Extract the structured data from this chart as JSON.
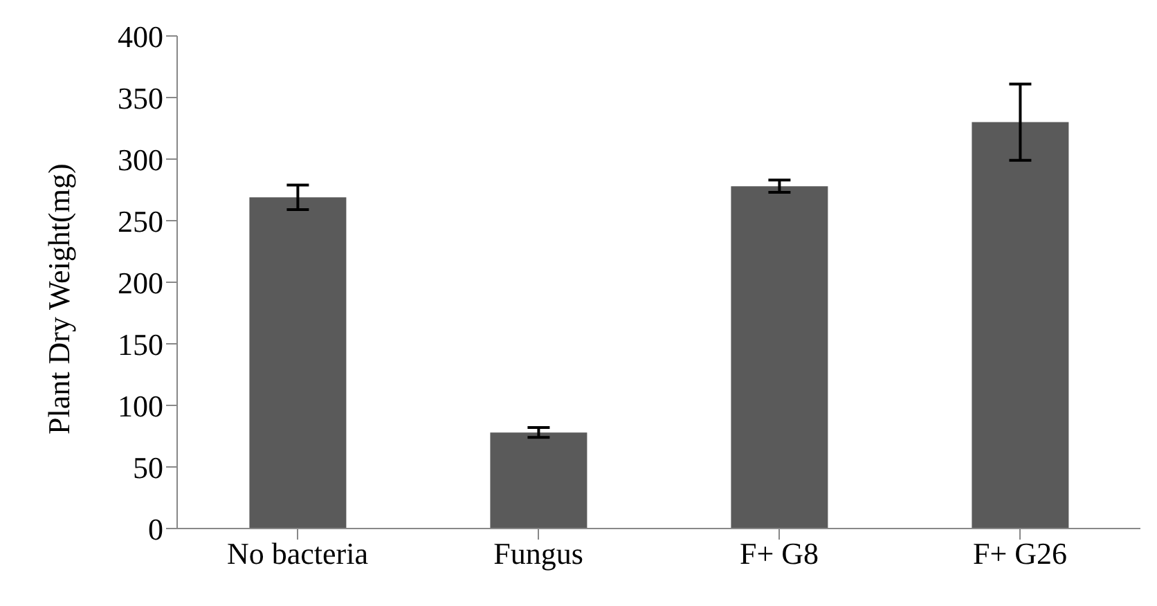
{
  "chart_data": {
    "type": "bar",
    "ylabel": "Plant Dry Weight(mg)",
    "categories": [
      "No bacteria",
      "Fungus",
      "F+ G8",
      "F+ G26"
    ],
    "values": [
      269,
      78,
      278,
      330
    ],
    "color": "#5a5a5a",
    "errors": [
      10,
      4,
      5,
      31
    ],
    "ylim": [
      0,
      400
    ],
    "yticks": [
      0,
      50,
      100,
      150,
      200,
      250,
      300,
      350,
      400
    ],
    "grid": false
  }
}
